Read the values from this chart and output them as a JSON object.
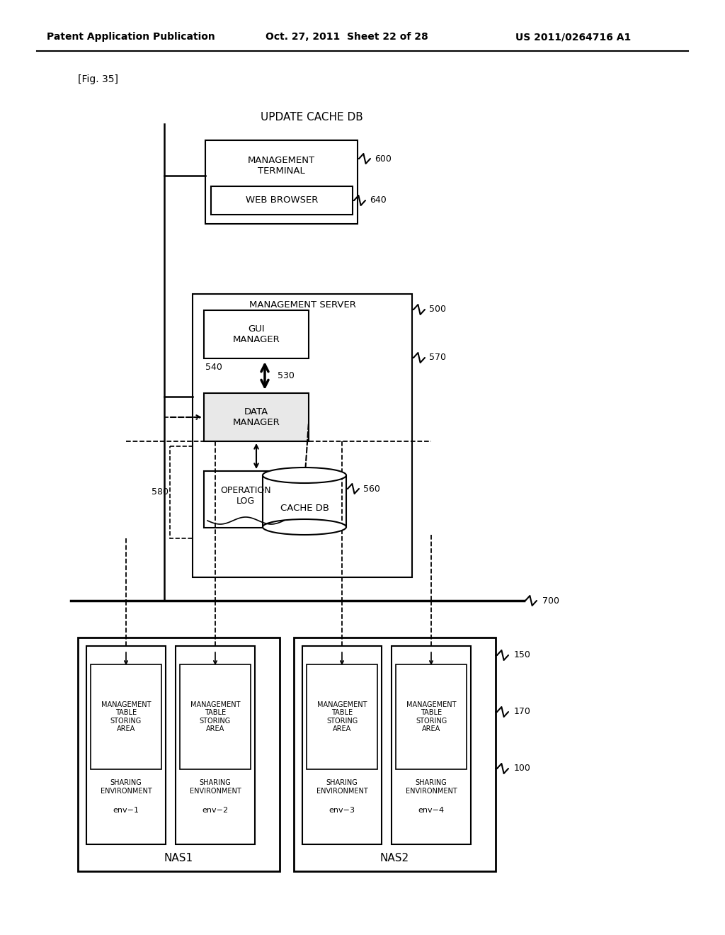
{
  "bg_color": "#ffffff",
  "header_left": "Patent Application Publication",
  "header_mid": "Oct. 27, 2011  Sheet 22 of 28",
  "header_right": "US 2011/0264716 A1",
  "fig_label": "[Fig. 35]",
  "title": "UPDATE CACHE DB",
  "label_600": "600",
  "label_640": "640",
  "label_500": "500",
  "label_570": "570",
  "label_540": "540",
  "label_530": "530",
  "label_580": "580",
  "label_560": "560",
  "label_700": "700",
  "label_150": "150",
  "label_170": "170",
  "label_100": "100",
  "box_mgmt_terminal": "MANAGEMENT\nTERMINAL",
  "box_web_browser": "WEB BROWSER",
  "box_mgmt_server": "MANAGEMENT SERVER",
  "box_gui_manager": "GUI\nMANAGER",
  "box_data_manager": "DATA\nMANAGER",
  "box_operation_log": "OPERATION\nLOG",
  "box_cache_db": "CACHE DB",
  "nas1_label": "NAS1",
  "nas2_label": "NAS2",
  "env_labels": [
    "env−1",
    "env−2",
    "env−3",
    "env−4"
  ],
  "sharing_env_text": "SHARING\nENVIRONMENT",
  "mgmt_table_text": "MANAGEMENT\nTABLE\nSTORING\nAREA"
}
